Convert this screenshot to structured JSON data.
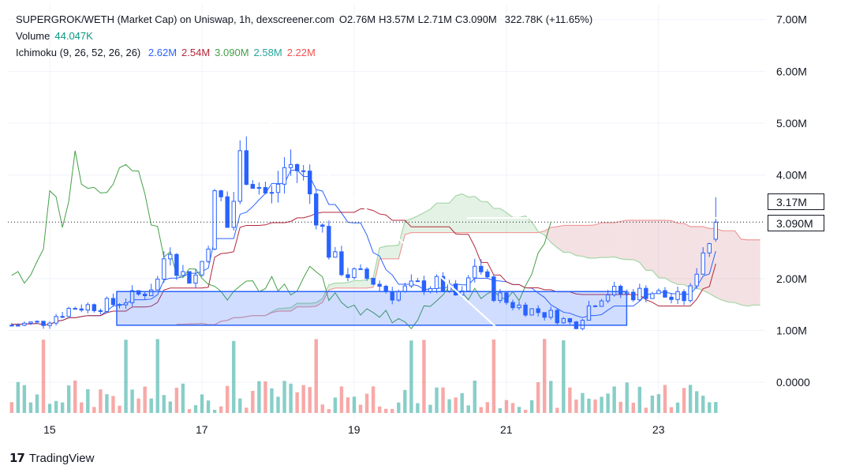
{
  "legend": {
    "symbol": "SUPERGROK/WETH (Market Cap) on Uniswap, 1h, dexscreener.com",
    "ohlc": [
      {
        "k": "O",
        "v": "2.76M"
      },
      {
        "k": "H",
        "v": "3.57M"
      },
      {
        "k": "L",
        "v": "2.71M"
      },
      {
        "k": "C",
        "v": "3.090M"
      }
    ],
    "change": "322.78K (+11.65%)",
    "volume_label": "Volume",
    "volume_value": "44.047K",
    "ichimoku_label": "Ichimoku (9, 26, 52, 26, 26)",
    "ichimoku_values": [
      {
        "v": "2.62M",
        "color": "#2962ff"
      },
      {
        "v": "2.54M",
        "color": "#b2283a"
      },
      {
        "v": "3.090M",
        "color": "#43a047"
      },
      {
        "v": "2.58M",
        "color": "#26a69a"
      },
      {
        "v": "2.22M",
        "color": "#ef5350"
      }
    ]
  },
  "price_tags": {
    "high": "3.17M",
    "current": "3.090M"
  },
  "branding": "TradingView",
  "colors": {
    "up": "#ffffff",
    "down": "#2962ff",
    "vol_up": "#26a69a",
    "vol_down": "#ef5350",
    "tenkan": "#2962ff",
    "kijun": "#b2283a",
    "chikou": "#43a047",
    "span_a": "#a5d6a7",
    "span_b": "#ef9a9a",
    "box": "#2962ff"
  },
  "chart_data": {
    "type": "candlestick",
    "title": "SUPERGROK/WETH (Market Cap) on Uniswap, 1h",
    "y_ticks": [
      "7.00M",
      "6.00M",
      "5.00M",
      "4.00M",
      "2.00M",
      "1.00M",
      "0.0000"
    ],
    "x_ticks": [
      "15",
      "17",
      "19",
      "21",
      "23"
    ],
    "ylim": [
      -0.7,
      7.3
    ],
    "xlim": [
      14.45,
      24.4
    ],
    "anchors": [
      [
        14.5,
        1.1
      ],
      [
        14.9,
        1.15
      ],
      [
        15.3,
        1.45
      ],
      [
        15.8,
        1.5
      ],
      [
        16.2,
        1.7
      ],
      [
        16.45,
        2.0
      ],
      [
        16.55,
        2.8
      ],
      [
        16.7,
        2.1
      ],
      [
        16.9,
        2.0
      ],
      [
        17.05,
        2.5
      ],
      [
        17.2,
        3.8
      ],
      [
        17.35,
        2.9
      ],
      [
        17.5,
        4.3
      ],
      [
        17.7,
        3.9
      ],
      [
        17.9,
        3.5
      ],
      [
        18.1,
        4.2
      ],
      [
        18.3,
        4.1
      ],
      [
        18.5,
        3.3
      ],
      [
        18.7,
        2.4
      ],
      [
        18.9,
        2.1
      ],
      [
        19.2,
        2.0
      ],
      [
        19.5,
        1.7
      ],
      [
        19.8,
        1.85
      ],
      [
        20.1,
        1.9
      ],
      [
        20.4,
        1.6
      ],
      [
        20.6,
        2.35
      ],
      [
        20.8,
        1.75
      ],
      [
        21.0,
        1.55
      ],
      [
        21.3,
        1.4
      ],
      [
        21.6,
        1.3
      ],
      [
        21.9,
        1.1
      ],
      [
        22.1,
        1.5
      ],
      [
        22.3,
        1.75
      ],
      [
        22.6,
        1.7
      ],
      [
        22.9,
        1.75
      ],
      [
        23.2,
        1.6
      ],
      [
        23.4,
        1.65
      ],
      [
        23.55,
        2.5
      ],
      [
        23.7,
        2.8
      ],
      [
        23.8,
        3.09
      ]
    ],
    "volume_ticks_baseline": "0.0000",
    "annotations": {
      "trendline": [
        [
          17.42,
          5.65
        ],
        [
          20.95,
          0.95
        ]
      ],
      "box": {
        "x1": 15.88,
        "x2": 22.58,
        "y1": 1.1,
        "y2": 1.75
      },
      "resistance": {
        "x1": 20.48,
        "x2": 24.0,
        "y": 3.17
      },
      "last_price_line": 3.09
    }
  }
}
